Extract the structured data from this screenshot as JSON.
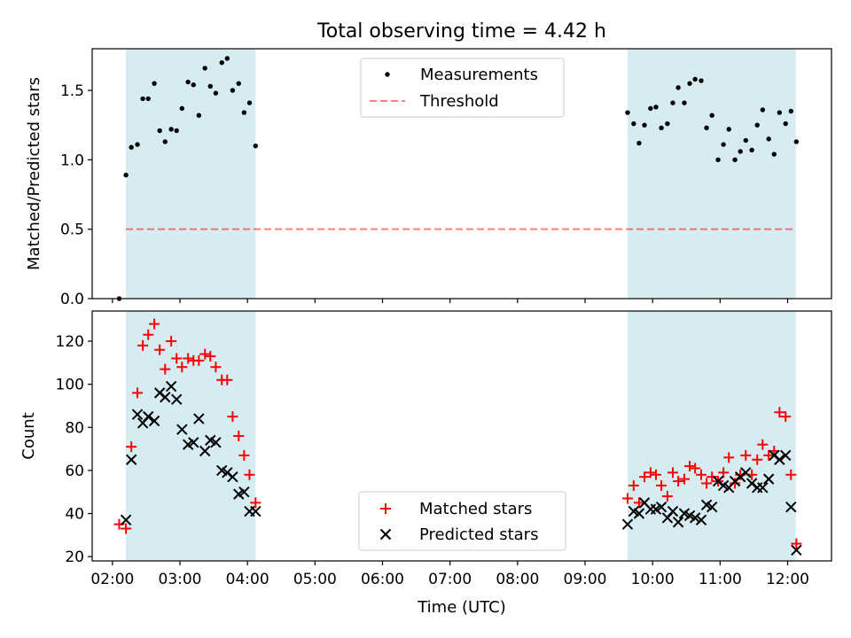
{
  "figure_title": "Total observing time = 4.42 h",
  "colors": {
    "shade": "#add8e6",
    "threshold": "#ff0000",
    "matched": "#ff0000",
    "predicted": "#000000",
    "measurement": "#000000"
  },
  "chart_data": [
    {
      "type": "scatter",
      "panel": "top",
      "ylabel": "Matched/Predicted stars",
      "xlim": [
        1.7,
        12.65
      ],
      "ylim": [
        0,
        1.8
      ],
      "x_unit": "hours UTC",
      "yticks": [
        0.0,
        0.5,
        1.0,
        1.5
      ],
      "ytick_labels": [
        "0.0",
        "0.5",
        "1.0",
        "1.5"
      ],
      "observing_windows": [
        [
          2.2,
          4.12
        ],
        [
          9.63,
          12.12
        ]
      ],
      "legend": {
        "position": "upper center",
        "entries": [
          "Measurements",
          "Threshold"
        ]
      },
      "threshold": {
        "name": "Threshold",
        "value": 0.5,
        "x_range": [
          2.2,
          12.12
        ]
      },
      "series": [
        {
          "name": "Measurements",
          "marker": "dot",
          "points": [
            [
              2.1,
              0.0
            ],
            [
              2.2,
              0.89
            ],
            [
              2.28,
              1.09
            ],
            [
              2.37,
              1.11
            ],
            [
              2.45,
              1.44
            ],
            [
              2.53,
              1.44
            ],
            [
              2.62,
              1.55
            ],
            [
              2.7,
              1.21
            ],
            [
              2.78,
              1.13
            ],
            [
              2.87,
              1.22
            ],
            [
              2.95,
              1.21
            ],
            [
              3.03,
              1.37
            ],
            [
              3.12,
              1.56
            ],
            [
              3.2,
              1.54
            ],
            [
              3.28,
              1.32
            ],
            [
              3.37,
              1.66
            ],
            [
              3.45,
              1.53
            ],
            [
              3.53,
              1.48
            ],
            [
              3.62,
              1.7
            ],
            [
              3.7,
              1.73
            ],
            [
              3.78,
              1.5
            ],
            [
              3.87,
              1.55
            ],
            [
              3.95,
              1.34
            ],
            [
              4.03,
              1.41
            ],
            [
              4.12,
              1.1
            ],
            [
              9.63,
              1.34
            ],
            [
              9.72,
              1.26
            ],
            [
              9.8,
              1.12
            ],
            [
              9.88,
              1.25
            ],
            [
              9.97,
              1.37
            ],
            [
              10.05,
              1.38
            ],
            [
              10.13,
              1.23
            ],
            [
              10.22,
              1.26
            ],
            [
              10.3,
              1.41
            ],
            [
              10.38,
              1.52
            ],
            [
              10.47,
              1.41
            ],
            [
              10.55,
              1.55
            ],
            [
              10.63,
              1.58
            ],
            [
              10.72,
              1.57
            ],
            [
              10.8,
              1.23
            ],
            [
              10.88,
              1.32
            ],
            [
              10.97,
              1.0
            ],
            [
              11.05,
              1.11
            ],
            [
              11.13,
              1.22
            ],
            [
              11.22,
              1.0
            ],
            [
              11.3,
              1.06
            ],
            [
              11.38,
              1.14
            ],
            [
              11.47,
              1.07
            ],
            [
              11.55,
              1.25
            ],
            [
              11.63,
              1.36
            ],
            [
              11.72,
              1.15
            ],
            [
              11.8,
              1.04
            ],
            [
              11.88,
              1.34
            ],
            [
              11.97,
              1.26
            ],
            [
              12.05,
              1.35
            ],
            [
              12.13,
              1.13
            ]
          ]
        }
      ]
    },
    {
      "type": "scatter",
      "panel": "bottom",
      "xlabel": "Time (UTC)",
      "ylabel": "Count",
      "xlim": [
        1.7,
        12.65
      ],
      "ylim": [
        18,
        134
      ],
      "x_unit": "hours UTC",
      "xticks": [
        2,
        3,
        4,
        5,
        6,
        7,
        8,
        9,
        10,
        11,
        12
      ],
      "xtick_labels": [
        "02:00",
        "03:00",
        "04:00",
        "05:00",
        "06:00",
        "07:00",
        "08:00",
        "09:00",
        "10:00",
        "11:00",
        "12:00"
      ],
      "yticks": [
        20,
        40,
        60,
        80,
        100,
        120
      ],
      "ytick_labels": [
        "20",
        "40",
        "60",
        "80",
        "100",
        "120"
      ],
      "observing_windows": [
        [
          2.2,
          4.12
        ],
        [
          9.63,
          12.12
        ]
      ],
      "legend": {
        "position": "lower center",
        "entries": [
          "Matched stars",
          "Predicted stars"
        ]
      },
      "series": [
        {
          "name": "Matched stars",
          "marker": "plus",
          "points": [
            [
              2.1,
              35
            ],
            [
              2.2,
              33
            ],
            [
              2.28,
              71
            ],
            [
              2.37,
              96
            ],
            [
              2.45,
              118
            ],
            [
              2.53,
              123
            ],
            [
              2.62,
              128
            ],
            [
              2.7,
              116
            ],
            [
              2.78,
              107
            ],
            [
              2.87,
              120
            ],
            [
              2.95,
              112
            ],
            [
              3.03,
              108
            ],
            [
              3.12,
              112
            ],
            [
              3.2,
              111
            ],
            [
              3.28,
              111
            ],
            [
              3.37,
              114
            ],
            [
              3.45,
              113
            ],
            [
              3.53,
              108
            ],
            [
              3.62,
              102
            ],
            [
              3.7,
              102
            ],
            [
              3.78,
              85
            ],
            [
              3.87,
              76
            ],
            [
              3.95,
              67
            ],
            [
              4.03,
              58
            ],
            [
              4.12,
              45
            ],
            [
              9.63,
              47
            ],
            [
              9.72,
              53
            ],
            [
              9.8,
              45
            ],
            [
              9.88,
              57
            ],
            [
              9.97,
              59
            ],
            [
              10.05,
              58
            ],
            [
              10.13,
              53
            ],
            [
              10.22,
              48
            ],
            [
              10.3,
              59
            ],
            [
              10.38,
              55
            ],
            [
              10.47,
              56
            ],
            [
              10.55,
              62
            ],
            [
              10.63,
              61
            ],
            [
              10.72,
              58
            ],
            [
              10.8,
              54
            ],
            [
              10.88,
              57
            ],
            [
              10.97,
              55
            ],
            [
              11.05,
              59
            ],
            [
              11.13,
              66
            ],
            [
              11.22,
              54
            ],
            [
              11.3,
              58
            ],
            [
              11.38,
              67
            ],
            [
              11.47,
              58
            ],
            [
              11.55,
              65
            ],
            [
              11.63,
              72
            ],
            [
              11.72,
              67
            ],
            [
              11.8,
              69
            ],
            [
              11.88,
              87
            ],
            [
              11.97,
              85
            ],
            [
              12.05,
              58
            ],
            [
              12.13,
              26
            ]
          ]
        },
        {
          "name": "Predicted stars",
          "marker": "x",
          "points": [
            [
              2.2,
              37
            ],
            [
              2.28,
              65
            ],
            [
              2.37,
              86
            ],
            [
              2.45,
              82
            ],
            [
              2.53,
              85
            ],
            [
              2.62,
              83
            ],
            [
              2.7,
              96
            ],
            [
              2.78,
              94
            ],
            [
              2.87,
              99
            ],
            [
              2.95,
              93
            ],
            [
              3.03,
              79
            ],
            [
              3.12,
              72
            ],
            [
              3.2,
              73
            ],
            [
              3.28,
              84
            ],
            [
              3.37,
              69
            ],
            [
              3.45,
              74
            ],
            [
              3.53,
              73
            ],
            [
              3.62,
              60
            ],
            [
              3.7,
              59
            ],
            [
              3.78,
              57
            ],
            [
              3.87,
              49
            ],
            [
              3.95,
              50
            ],
            [
              4.03,
              41
            ],
            [
              4.12,
              41
            ],
            [
              9.63,
              35
            ],
            [
              9.72,
              41
            ],
            [
              9.8,
              40
            ],
            [
              9.88,
              45
            ],
            [
              9.97,
              42
            ],
            [
              10.05,
              42
            ],
            [
              10.13,
              43
            ],
            [
              10.22,
              38
            ],
            [
              10.3,
              41
            ],
            [
              10.38,
              36
            ],
            [
              10.47,
              40
            ],
            [
              10.55,
              39
            ],
            [
              10.63,
              38
            ],
            [
              10.72,
              37
            ],
            [
              10.8,
              44
            ],
            [
              10.88,
              43
            ],
            [
              10.97,
              55
            ],
            [
              11.05,
              53
            ],
            [
              11.13,
              52
            ],
            [
              11.22,
              55
            ],
            [
              11.3,
              57
            ],
            [
              11.38,
              59
            ],
            [
              11.47,
              54
            ],
            [
              11.55,
              52
            ],
            [
              11.63,
              52
            ],
            [
              11.72,
              56
            ],
            [
              11.8,
              67
            ],
            [
              11.88,
              65
            ],
            [
              11.97,
              67
            ],
            [
              12.05,
              43
            ],
            [
              12.13,
              23
            ]
          ]
        }
      ]
    }
  ]
}
